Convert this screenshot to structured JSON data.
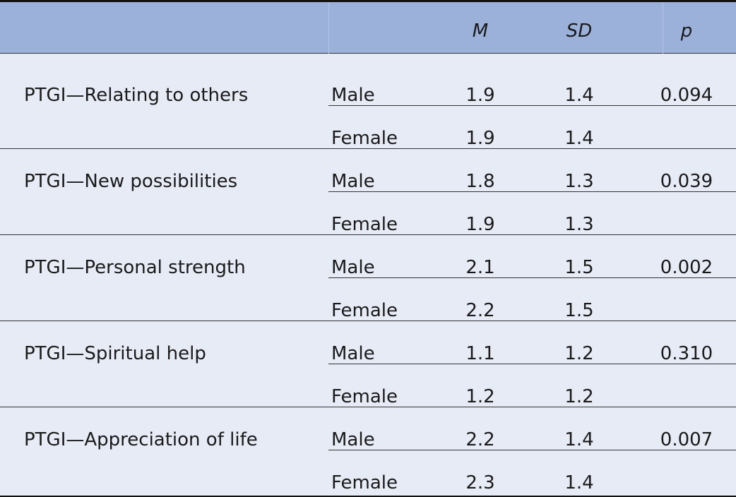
{
  "header": {
    "mean_label": "M",
    "sd_label": "SD",
    "p_label": "p"
  },
  "rows": [
    {
      "label": "PTGI—Relating to others",
      "male": {
        "sex": "Male",
        "m": "1.9",
        "sd": "1.4"
      },
      "female": {
        "sex": "Female",
        "m": "1.9",
        "sd": "1.4"
      },
      "p": "0.094"
    },
    {
      "label": "PTGI—New possibilities",
      "male": {
        "sex": "Male",
        "m": "1.8",
        "sd": "1.3"
      },
      "female": {
        "sex": "Female",
        "m": "1.9",
        "sd": "1.3"
      },
      "p": "0.039"
    },
    {
      "label": "PTGI—Personal strength",
      "male": {
        "sex": "Male",
        "m": "2.1",
        "sd": "1.5"
      },
      "female": {
        "sex": "Female",
        "m": "2.2",
        "sd": "1.5"
      },
      "p": "0.002"
    },
    {
      "label": "PTGI—Spiritual help",
      "male": {
        "sex": "Male",
        "m": "1.1",
        "sd": "1.2"
      },
      "female": {
        "sex": "Female",
        "m": "1.2",
        "sd": "1.2"
      },
      "p": "0.310"
    },
    {
      "label": "PTGI—Appreciation of life",
      "male": {
        "sex": "Male",
        "m": "2.2",
        "sd": "1.4"
      },
      "female": {
        "sex": "Female",
        "m": "2.3",
        "sd": "1.4"
      },
      "p": "0.007"
    }
  ],
  "colors": {
    "header_bg": "#9cb1da",
    "body_bg": "#e7ebf6",
    "rule": "#333333"
  }
}
